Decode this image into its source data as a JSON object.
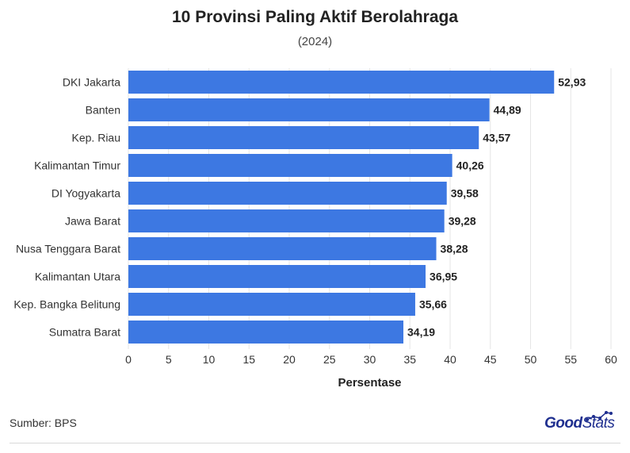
{
  "header": {
    "title": "10 Provinsi Paling Aktif Berolahraga",
    "subtitle": "(2024)"
  },
  "footer": {
    "source": "Sumber: BPS",
    "logo_part1": "Good",
    "logo_part2": "Stats"
  },
  "colors": {
    "bar": "#3d78e2",
    "grid": "#e6e6e6",
    "label": "#333333",
    "logo": "#1f2f8f"
  },
  "chart_data": {
    "type": "bar",
    "orientation": "horizontal",
    "title": "10 Provinsi Paling Aktif Berolahraga",
    "subtitle": "(2024)",
    "xlabel": "Persentase",
    "ylabel": "",
    "categories": [
      "DKI Jakarta",
      "Banten",
      "Kep. Riau",
      "Kalimantan Timur",
      "DI Yogyakarta",
      "Jawa Barat",
      "Nusa Tenggara Barat",
      "Kalimantan Utara",
      "Kep. Bangka Belitung",
      "Sumatra Barat"
    ],
    "values": [
      52.93,
      44.89,
      43.57,
      40.26,
      39.58,
      39.28,
      38.28,
      36.95,
      35.66,
      34.19
    ],
    "value_labels": [
      "52,93",
      "44,89",
      "43,57",
      "40,26",
      "39,58",
      "39,28",
      "38,28",
      "36,95",
      "35,66",
      "34,19"
    ],
    "xlim": [
      0,
      60
    ],
    "xticks": [
      0,
      5,
      10,
      15,
      20,
      25,
      30,
      35,
      40,
      45,
      50,
      55,
      60
    ],
    "grid": true,
    "legend": "none"
  }
}
